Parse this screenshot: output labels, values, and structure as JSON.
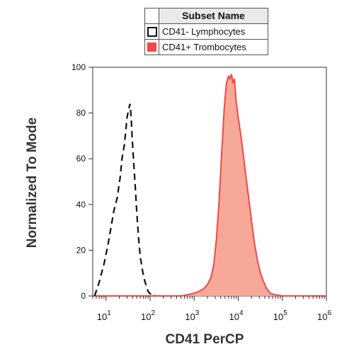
{
  "legend": {
    "title": "Subset Name",
    "items": [
      {
        "label": "CD41- Lymphocytes",
        "style": "dashed-outline",
        "color": "#111111"
      },
      {
        "label": "CD41+ Trombocytes",
        "style": "filled",
        "color": "#f04848",
        "fill": "#f8a898"
      }
    ]
  },
  "chart_data": {
    "type": "area",
    "xlabel": "CD41 PerCP",
    "ylabel": "Normalized To Mode",
    "x_scale": "log",
    "xlim": [
      5,
      1000000
    ],
    "ylim": [
      0,
      100
    ],
    "y_ticks": [
      "0",
      "20",
      "40",
      "60",
      "80",
      "100"
    ],
    "x_ticks": [
      {
        "value": 10,
        "base": "10",
        "exp": "1"
      },
      {
        "value": 100,
        "base": "10",
        "exp": "2"
      },
      {
        "value": 1000,
        "base": "10",
        "exp": "3"
      },
      {
        "value": 10000,
        "base": "10",
        "exp": "4"
      },
      {
        "value": 100000,
        "base": "10",
        "exp": "5"
      },
      {
        "value": 1000000,
        "base": "10",
        "exp": "6"
      }
    ],
    "series": [
      {
        "name": "CD41- Lymphocytes",
        "style": "dashed",
        "x": [
          5.5,
          7,
          9,
          11,
          13,
          15,
          18,
          21,
          23,
          26,
          28,
          30,
          33,
          35,
          37,
          39,
          42,
          46,
          50,
          55,
          60,
          66,
          72,
          80,
          90,
          100,
          115,
          130
        ],
        "y": [
          0,
          6,
          14,
          22,
          30,
          37,
          43,
          52,
          60,
          66,
          72,
          78,
          82,
          84,
          79,
          70,
          60,
          48,
          36,
          25,
          17,
          12,
          8,
          5,
          2,
          1,
          0,
          0
        ]
      },
      {
        "name": "CD41+ Trombocytes",
        "style": "filled",
        "x": [
          5,
          100,
          500,
          700,
          900,
          1100,
          1300,
          1600,
          2000,
          2400,
          2800,
          3200,
          3700,
          4200,
          4800,
          5400,
          6000,
          6500,
          7000,
          7600,
          8200,
          9000,
          10000,
          11500,
          13000,
          15000,
          17500,
          20000,
          23000,
          27000,
          32000,
          38000,
          45000,
          55000,
          70000,
          100000,
          1000000
        ],
        "y": [
          0,
          0,
          0,
          0.5,
          1,
          1.5,
          2,
          3,
          5,
          8,
          14,
          25,
          42,
          62,
          82,
          93,
          96,
          95,
          97,
          93,
          95,
          85,
          78,
          70,
          62,
          52,
          42,
          33,
          24,
          16,
          10,
          6,
          3,
          1,
          0.5,
          0,
          0
        ]
      }
    ]
  }
}
